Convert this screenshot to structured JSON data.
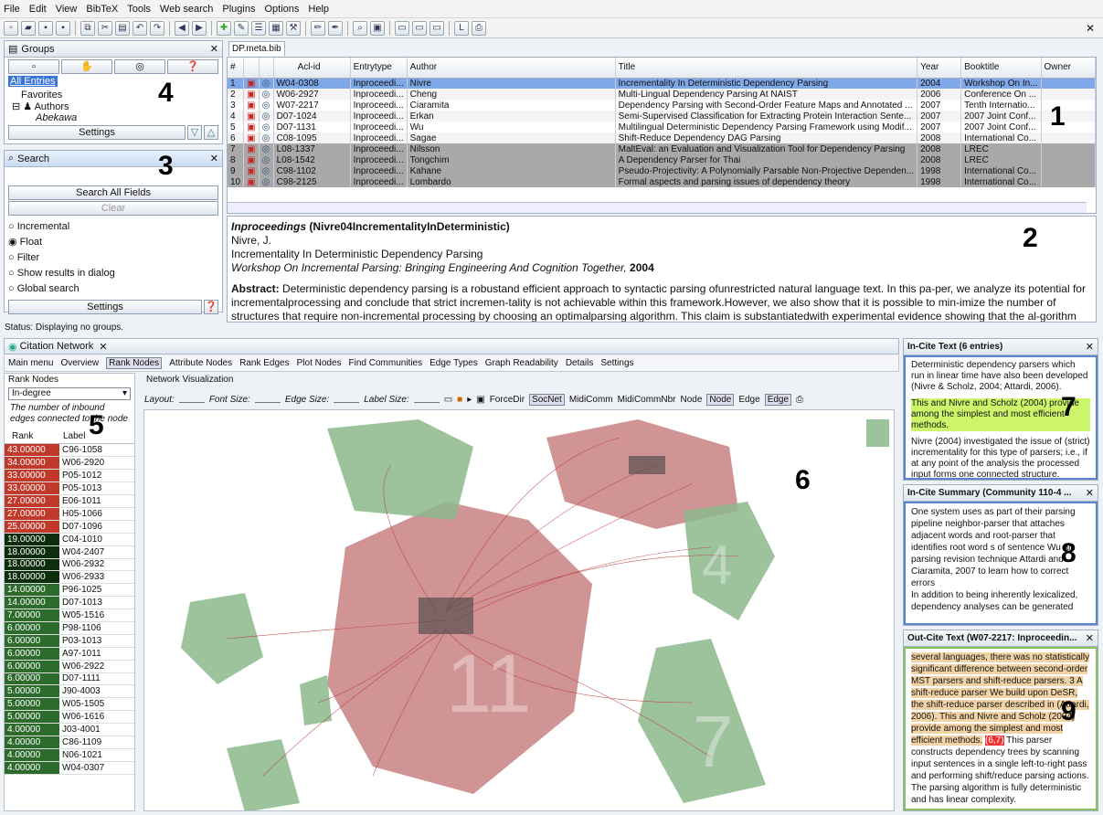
{
  "menu": [
    "File",
    "Edit",
    "View",
    "BibTeX",
    "Tools",
    "Web search",
    "Plugins",
    "Options",
    "Help"
  ],
  "groups": {
    "title": "Groups",
    "items": [
      "All Entries",
      "Favorites",
      "Authors",
      "Abekawa"
    ],
    "settings": "Settings",
    "marker": "4"
  },
  "search": {
    "title": "Search",
    "marker": "3",
    "search_all": "Search All Fields",
    "clear": "Clear",
    "options": [
      "Incremental",
      "Float",
      "Filter",
      "Show results in dialog",
      "Global search"
    ],
    "settings": "Settings"
  },
  "status": "Status: Displaying no groups.",
  "bib": {
    "tab": "DP.meta.bib",
    "marker": "1",
    "columns": [
      "#",
      "",
      "",
      "Acl-id",
      "Entrytype",
      "Author",
      "Title",
      "Year",
      "Booktitle",
      "Owner"
    ],
    "rows": [
      [
        "1",
        "W04-0308",
        "Inproceedi...",
        "Nivre",
        "Incrementality In Deterministic Dependency Parsing",
        "2004",
        "Workshop On In..."
      ],
      [
        "2",
        "W06-2927",
        "Inproceedi...",
        "Cheng",
        "Multi-Lingual Dependency Parsing At NAIST",
        "2006",
        "Conference On ..."
      ],
      [
        "3",
        "W07-2217",
        "Inproceedi...",
        "Ciaramita",
        "Dependency Parsing with Second-Order Feature Maps and Annotated ...",
        "2007",
        "Tenth Internatio..."
      ],
      [
        "4",
        "D07-1024",
        "Inproceedi...",
        "Erkan",
        "Semi-Supervised Classification for Extracting Protein Interaction Sente...",
        "2007",
        "2007 Joint Conf..."
      ],
      [
        "5",
        "D07-1131",
        "Inproceedi...",
        "Wu",
        "Multilingual Deterministic Dependency Parsing Framework using Modif...",
        "2007",
        "2007 Joint Conf..."
      ],
      [
        "6",
        "C08-1095",
        "Inproceedi...",
        "Sagae",
        "Shift-Reduce Dependency DAG Parsing",
        "2008",
        "International Co..."
      ],
      [
        "7",
        "L08-1337",
        "Inproceedi...",
        "Nilsson",
        "MaltEval: an Evaluation and Visualization Tool for Dependency Parsing",
        "2008",
        "LREC"
      ],
      [
        "8",
        "L08-1542",
        "Inproceedi...",
        "Tongchim",
        "A Dependency Parser for Thai",
        "2008",
        "LREC"
      ],
      [
        "9",
        "C98-1102",
        "Inproceedi...",
        "Kahane",
        "Pseudo-Projectivity: A Polynomially Parsable Non-Projective Dependen...",
        "1998",
        "International Co..."
      ],
      [
        "10",
        "C98-2125",
        "Inproceedi...",
        "Lombardo",
        "Formal aspects and parsing issues of dependency theory",
        "1998",
        "International Co..."
      ]
    ]
  },
  "preview": {
    "marker": "2",
    "heading_type": "Inproceedings",
    "heading_key": "(Nivre04IncrementalityInDeterministic)",
    "author": "Nivre, J.",
    "title": "Incrementality In Deterministic Dependency Parsing",
    "venue": "Workshop On Incremental Parsing: Bringing Engineering And Cognition Together,",
    "year": "2004",
    "abstract_label": "Abstract:",
    "abstract": "Deterministic dependency parsing is a robustand efficient approach to syntactic parsing ofunrestricted natural language text. In this pa-per, we analyze its potential for incrementalprocessing and conclude that strict incremen-tality is not achievable within this framework.However, we also show that it is possible to min-imize the number of structures that require non-incremental processing by choosing an optimalparsing algorithm. This claim is substantiatedwith experimental evidence showing that the al-gorithm achieves"
  },
  "citation": {
    "tab": "Citation Network",
    "toolbar": [
      "Main menu",
      "Overview",
      "Rank Nodes",
      "Attribute Nodes",
      "Rank Edges",
      "Plot Nodes",
      "Find Communities",
      "Edge Types",
      "Graph Readability",
      "Details",
      "Settings"
    ],
    "rank_title": "Rank Nodes",
    "rank_select": "In-degree",
    "rank_desc": "The number of inbound edges connected to the node",
    "rank_marker": "5",
    "rank_cols": [
      "Rank",
      "Label"
    ],
    "ranks": [
      [
        "43.00000",
        "C96-1058"
      ],
      [
        "34.00000",
        "W06-2920"
      ],
      [
        "33.00000",
        "P05-1012"
      ],
      [
        "33.00000",
        "P05-1013"
      ],
      [
        "27.00000",
        "E06-1011"
      ],
      [
        "27.00000",
        "H05-1066"
      ],
      [
        "25.00000",
        "D07-1096"
      ],
      [
        "19.00000",
        "C04-1010"
      ],
      [
        "18.00000",
        "W04-2407"
      ],
      [
        "18.00000",
        "W06-2932"
      ],
      [
        "18.00000",
        "W06-2933"
      ],
      [
        "14.00000",
        "P96-1025"
      ],
      [
        "14.00000",
        "D07-1013"
      ],
      [
        "7.00000",
        "W05-1516"
      ],
      [
        "6.00000",
        "P98-1106"
      ],
      [
        "6.00000",
        "P03-1013"
      ],
      [
        "6.00000",
        "A97-1011"
      ],
      [
        "6.00000",
        "W06-2922"
      ],
      [
        "6.00000",
        "D07-1111"
      ],
      [
        "5.00000",
        "J90-4003"
      ],
      [
        "5.00000",
        "W05-1505"
      ],
      [
        "5.00000",
        "W06-1616"
      ],
      [
        "4.00000",
        "J03-4001"
      ],
      [
        "4.00000",
        "C86-1109"
      ],
      [
        "4.00000",
        "N06-1021"
      ],
      [
        "4.00000",
        "W04-0307"
      ]
    ],
    "vis_title": "Network Visualization",
    "vis_marker": "6",
    "controls": {
      "layout": "Layout:",
      "font": "Font Size:",
      "edge": "Edge Size:",
      "label": "Label Size:",
      "forcedir": "ForceDir",
      "socnet": "SocNet",
      "midicomm": "MidiComm",
      "midicommnbr": "MidiCommNbr",
      "node1": "Node",
      "node2": "Node",
      "edge1": "Edge",
      "edge2": "Edge"
    }
  },
  "incite": {
    "title": "In-Cite Text (6 entries)",
    "marker": "7",
    "p1": "Deterministic dependency parsers which run in linear time have also been developed (Nivre & Scholz, 2004; Attardi, 2006).",
    "p2": "This and Nivre and Scholz (2004) provide among the simplest and most efficient methods.",
    "p3": "Nivre (2004) investigated the issue of (strict) incrementality for this type of parsers; i.e., if at any point of the analysis the processed input forms one connected structure."
  },
  "summary": {
    "title": "In-Cite Summary (Community 110-4 ...",
    "marker": "8",
    "text": [
      "One system uses as part of their parsing pipeline neighbor-parser that attaches adjacent words and root-parser that identifies root word s of sentence Wu al.",
      "parsing revision technique Attardi and Ciaramita, 2007 to learn how to correct errors",
      "In addition to being inherently lexicalized, dependency analyses can be generated"
    ]
  },
  "outcite": {
    "title": "Out-Cite Text (W07-2217: Inproceedin...",
    "marker": "9",
    "t1": "several languages, there was no statistically significant difference between second-order MST parsers and shift-reduce parsers. 3 A shift-reduce parser We build upon DeSR, the shift-reduce parser described in (Attardi, 2006). This and Nivre and Scholz (2004) provide among the simplest and most efficient methods.",
    "cite": "(6,7)",
    "t2": "This parser constructs dependency trees by scanning input sentences in a single left-to-right pass and performing shift/reduce parsing actions. The parsing algorithm is fully deterministic and has linear complexity."
  },
  "colors": {
    "red_cluster": "#c98181",
    "green_cluster": "#8cb98c",
    "rank_red": "#c0392b",
    "rank_green": "#2d6b2d",
    "selection": "#7fa8e8"
  }
}
